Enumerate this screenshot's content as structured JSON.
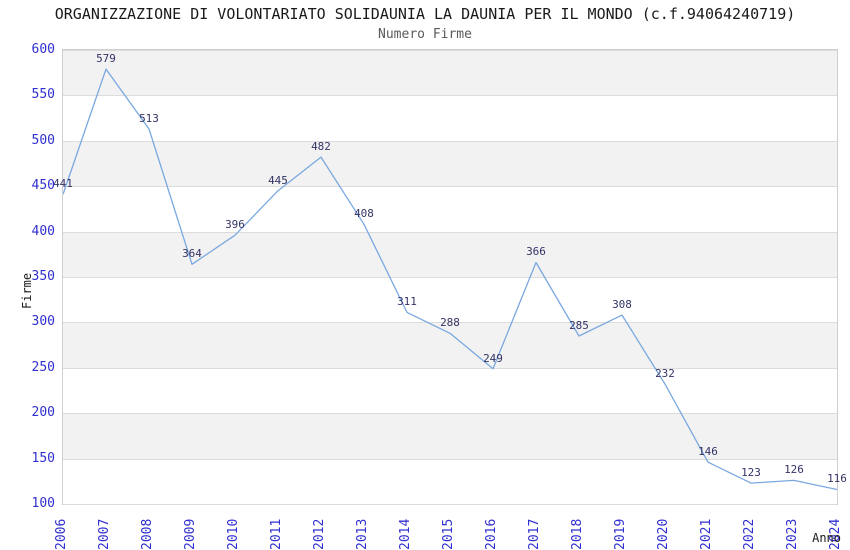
{
  "title": "ORGANIZZAZIONE DI VOLONTARIATO SOLIDAUNIA LA DAUNIA PER IL MONDO (c.f.94064240719)",
  "subtitle": "Numero Firme",
  "chart_data": {
    "type": "line",
    "x": [
      2006,
      2007,
      2008,
      2009,
      2010,
      2011,
      2012,
      2013,
      2014,
      2015,
      2016,
      2017,
      2018,
      2019,
      2020,
      2021,
      2022,
      2023,
      2024
    ],
    "series": [
      {
        "name": "Numero Firme",
        "values": [
          441,
          579,
          513,
          364,
          396,
          445,
          482,
          408,
          311,
          288,
          249,
          366,
          285,
          308,
          232,
          146,
          123,
          126,
          116
        ]
      }
    ],
    "xlabel": "Anno",
    "ylabel": "Firme",
    "ylim": [
      100,
      600
    ],
    "ytick_step": 50,
    "grid": "horizontal-gridlines-with-alternating-bands",
    "legend_position": "none",
    "show_data_labels": true,
    "colors": {
      "line": "#7aa8e0",
      "tick_labels": "#3030d0",
      "data_labels": "#333366",
      "band": "#f2f2f2",
      "gridline": "#dcdcdc",
      "title_text": "#1a1a1a",
      "subtitle_text": "#5a5a5a"
    }
  }
}
